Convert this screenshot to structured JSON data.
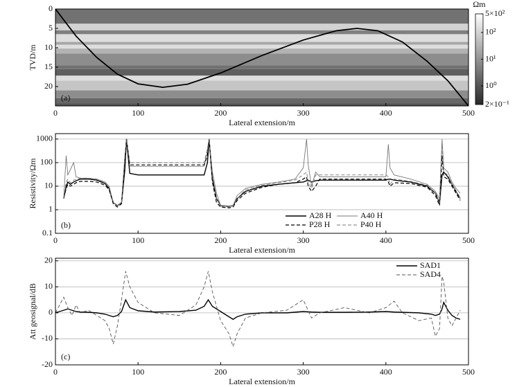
{
  "chart_data": [
    {
      "type": "layers",
      "panel_label": "(a)",
      "xlabel": "Lateral extension/m",
      "ylabel": "TVD/m",
      "xlim": [
        0,
        500
      ],
      "xticks": [
        0,
        100,
        200,
        300,
        400,
        500
      ],
      "ylim": [
        0,
        25
      ],
      "yticks": [
        0,
        5,
        10,
        15,
        20
      ],
      "y_inverted": true,
      "layers": [
        {
          "top": 0,
          "bottom": 3.8,
          "value": 3
        },
        {
          "top": 3.8,
          "bottom": 5.5,
          "value": 100
        },
        {
          "top": 5.5,
          "bottom": 6.5,
          "value": 5
        },
        {
          "top": 6.5,
          "bottom": 8.5,
          "value": 150
        },
        {
          "top": 8.5,
          "bottom": 9.2,
          "value": 20
        },
        {
          "top": 9.2,
          "bottom": 10.2,
          "value": 150
        },
        {
          "top": 10.2,
          "bottom": 11.5,
          "value": 30
        },
        {
          "top": 11.5,
          "bottom": 14.5,
          "value": 8
        },
        {
          "top": 14.5,
          "bottom": 15.5,
          "value": 3
        },
        {
          "top": 15.5,
          "bottom": 17.2,
          "value": 1.5
        },
        {
          "top": 17.2,
          "bottom": 18.5,
          "value": 150
        },
        {
          "top": 18.5,
          "bottom": 21,
          "value": 60
        },
        {
          "top": 21,
          "bottom": 23,
          "value": 8
        },
        {
          "top": 23,
          "bottom": 24.3,
          "value": 2
        },
        {
          "top": 24.3,
          "bottom": 25,
          "value": 1
        }
      ],
      "trajectory": {
        "color": "#000000",
        "x": [
          0,
          25,
          50,
          75,
          100,
          130,
          160,
          200,
          250,
          300,
          340,
          365,
          390,
          420,
          450,
          475,
          500
        ],
        "y": [
          0,
          7,
          12.5,
          16.8,
          19.3,
          20.2,
          19.4,
          16.5,
          12,
          8,
          5.6,
          5,
          5.6,
          8.5,
          13.5,
          18.5,
          25
        ]
      },
      "colorbar": {
        "label": "Ωm",
        "log": true,
        "lim": [
          0.2,
          500
        ],
        "ticks": [
          {
            "value": 500,
            "label": "5×10²"
          },
          {
            "value": 100,
            "label": "10²"
          },
          {
            "value": 10,
            "label": "10¹"
          },
          {
            "value": 1,
            "label": "10⁰"
          },
          {
            "value": 0.2,
            "label": "2×10⁻¹"
          }
        ]
      }
    },
    {
      "type": "line",
      "panel_label": "(b)",
      "xlabel": "Lateral extension/m",
      "ylabel": "Resistivity/Ωm",
      "xlim": [
        0,
        500
      ],
      "xticks": [
        0,
        100,
        200,
        300,
        400,
        500
      ],
      "ylim": [
        0.1,
        1700
      ],
      "yticks": [
        0.1,
        1,
        10,
        100,
        1000
      ],
      "log_y": true,
      "grid": true,
      "legend": "lower right",
      "x": [
        10,
        13,
        15,
        18,
        22,
        25,
        30,
        40,
        50,
        60,
        65,
        70,
        75,
        80,
        84,
        86,
        90,
        100,
        140,
        180,
        184,
        186,
        190,
        195,
        200,
        210,
        215,
        220,
        230,
        250,
        270,
        290,
        300,
        304,
        306,
        310,
        315,
        320,
        350,
        380,
        400,
        403,
        405,
        410,
        430,
        450,
        460,
        465,
        468,
        470,
        475,
        480,
        485,
        490
      ],
      "series": [
        {
          "name": "A28 H",
          "color": "#000000",
          "width": 1.4,
          "dash": false,
          "values": [
            3,
            10,
            15,
            12,
            15,
            17,
            20,
            20,
            18,
            13,
            8,
            2,
            1.5,
            2,
            50,
            1000,
            35,
            30,
            30,
            30,
            100,
            1000,
            20,
            3,
            1.5,
            1.4,
            1.5,
            3,
            6,
            10,
            12,
            14,
            15,
            17,
            18,
            15,
            17,
            18,
            18,
            18,
            18,
            20,
            20,
            18,
            15,
            10,
            5,
            2,
            30,
            40,
            25,
            12,
            6,
            3
          ]
        },
        {
          "name": "A40 H",
          "color": "#777777",
          "width": 0.9,
          "dash": false,
          "values": [
            3,
            200,
            30,
            50,
            100,
            25,
            22,
            22,
            20,
            15,
            10,
            2,
            1.5,
            2,
            200,
            1000,
            70,
            70,
            70,
            70,
            300,
            1000,
            40,
            5,
            1.5,
            1.4,
            1.5,
            4,
            8,
            12,
            15,
            20,
            60,
            1000,
            80,
            10,
            40,
            25,
            25,
            25,
            25,
            600,
            60,
            30,
            20,
            12,
            6,
            3,
            1000,
            60,
            40,
            15,
            8,
            5
          ]
        },
        {
          "name": "P28 H",
          "color": "#000000",
          "width": 1.2,
          "dash": true,
          "values": [
            3,
            8,
            12,
            10,
            12,
            14,
            16,
            16,
            15,
            11,
            7,
            1.8,
            1.3,
            1.8,
            80,
            1000,
            80,
            80,
            80,
            80,
            200,
            1000,
            15,
            2,
            1.3,
            1.2,
            1.3,
            2.5,
            5,
            9,
            12,
            14,
            20,
            25,
            10,
            6,
            10,
            20,
            20,
            20,
            20,
            15,
            10,
            14,
            13,
            9,
            4,
            1.5,
            200,
            25,
            20,
            10,
            5,
            2.5
          ]
        },
        {
          "name": "P40 H",
          "color": "#777777",
          "width": 0.9,
          "dash": true,
          "values": [
            3,
            15,
            20,
            14,
            18,
            20,
            22,
            22,
            20,
            14,
            9,
            2,
            1.4,
            2,
            150,
            1000,
            100,
            100,
            100,
            100,
            400,
            1000,
            30,
            3,
            1.4,
            1.3,
            1.4,
            3,
            7,
            11,
            14,
            18,
            30,
            40,
            15,
            8,
            30,
            30,
            30,
            30,
            30,
            25,
            12,
            20,
            16,
            11,
            5,
            2,
            600,
            40,
            30,
            12,
            6,
            3
          ]
        }
      ]
    },
    {
      "type": "line",
      "panel_label": "(c)",
      "xlabel": "Lateral extension/m",
      "ylabel": "Att geosignal/dB",
      "xlim": [
        0,
        500
      ],
      "xticks": [
        0,
        100,
        200,
        300,
        400,
        500
      ],
      "ylim": [
        -20,
        21
      ],
      "yticks": [
        -20,
        -10,
        0,
        10,
        20
      ],
      "grid": true,
      "legend": "upper right",
      "x": [
        0,
        5,
        10,
        15,
        20,
        25,
        30,
        40,
        50,
        60,
        65,
        70,
        75,
        80,
        85,
        90,
        100,
        120,
        150,
        170,
        180,
        185,
        190,
        200,
        210,
        215,
        220,
        230,
        250,
        280,
        300,
        310,
        320,
        350,
        380,
        400,
        410,
        420,
        440,
        455,
        460,
        465,
        468,
        470,
        475,
        480,
        485,
        490
      ],
      "series": [
        {
          "name": "SAD1",
          "color": "#000000",
          "width": 1.4,
          "dash": false,
          "values": [
            0,
            0.5,
            1,
            1.5,
            1,
            0.5,
            0.3,
            0.2,
            0,
            -0.5,
            -1,
            -1.5,
            -1,
            0.5,
            5,
            2,
            0.8,
            0.3,
            0.5,
            1,
            2.5,
            5,
            2.5,
            0.5,
            -1.5,
            -2.5,
            -1.5,
            -0.5,
            0,
            0,
            0.5,
            0.3,
            0.2,
            0.2,
            0.3,
            0.5,
            0.3,
            0.2,
            0,
            -0.5,
            -1,
            -0.5,
            1.5,
            4,
            1,
            -1,
            -2,
            -2.5
          ]
        },
        {
          "name": "SAD4",
          "color": "#555555",
          "width": 0.9,
          "dash": true,
          "values": [
            0,
            3,
            6,
            2,
            -1,
            3,
            0,
            1,
            -1,
            -3,
            -6,
            -12,
            -5,
            5,
            16,
            10,
            4,
            0,
            -1,
            3,
            10,
            16,
            8,
            -3,
            -8,
            -13,
            -8,
            -2,
            0,
            1,
            5,
            -2,
            0,
            2,
            0,
            2,
            4.5,
            0,
            -3,
            -2,
            -9,
            -6,
            14,
            12,
            -2,
            -5,
            -2,
            1
          ]
        }
      ]
    }
  ]
}
